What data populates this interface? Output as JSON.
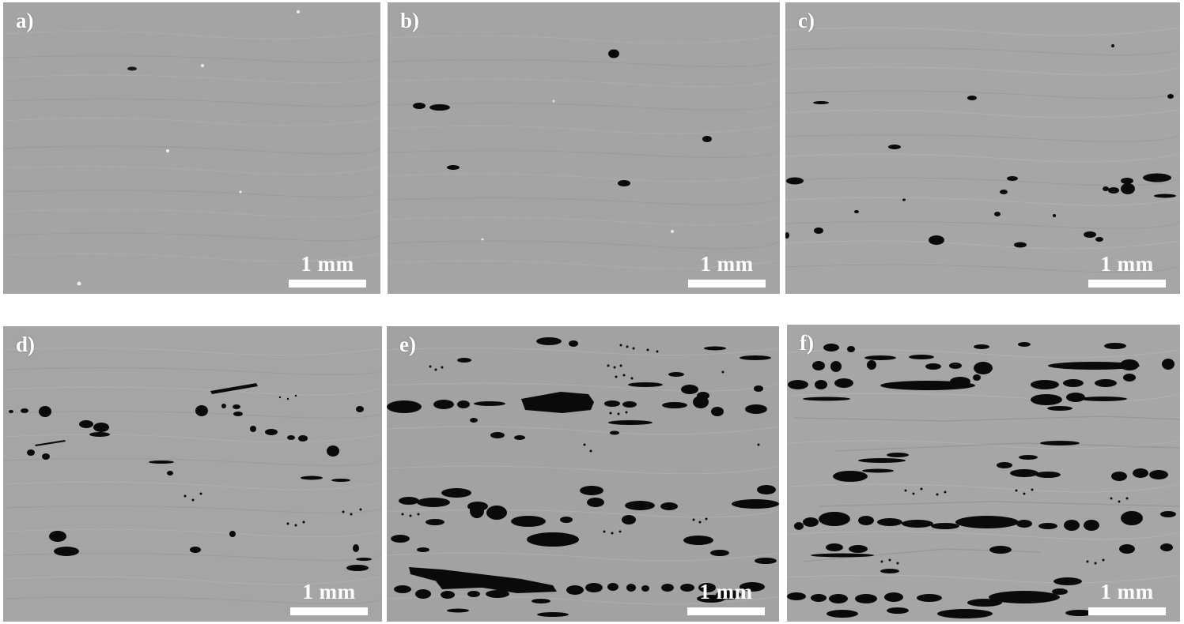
{
  "figure": {
    "panels": [
      {
        "label": "a)",
        "scale_label": "1 mm"
      },
      {
        "label": "b)",
        "scale_label": "1 mm"
      },
      {
        "label": "c)",
        "scale_label": "1 mm"
      },
      {
        "label": "d)",
        "scale_label": "1 mm"
      },
      {
        "label": "e)",
        "scale_label": "1 mm"
      },
      {
        "label": "f)",
        "scale_label": "1 mm"
      }
    ],
    "colors": {
      "matrix_gray": "#a3a3a3",
      "void_black": "#0a0a0a",
      "annotation_white": "#ffffff"
    }
  }
}
